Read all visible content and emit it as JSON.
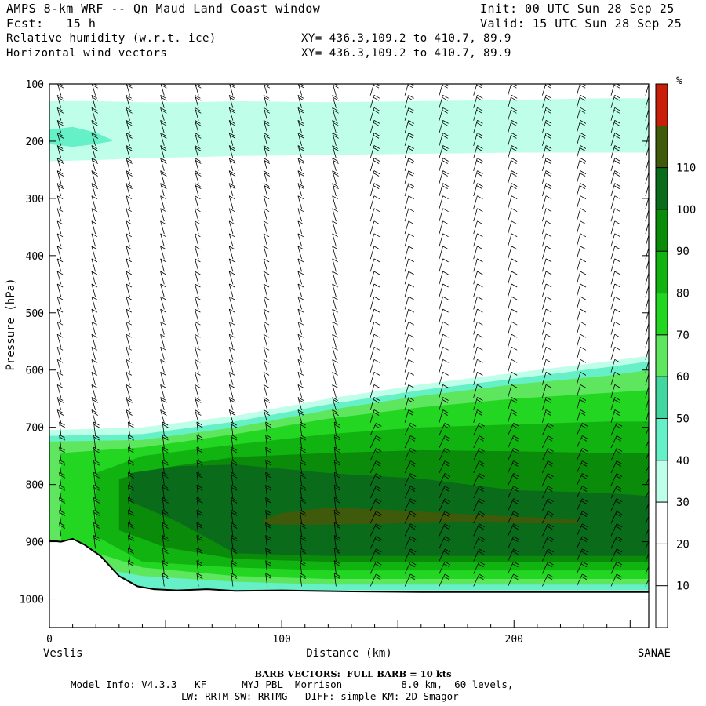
{
  "header": {
    "title": "AMPS 8-km WRF -- Qn Maud Land Coast window",
    "fcst": "Fcst:   15 h",
    "init": "Init: 00 UTC Sun 28 Sep 25",
    "valid": "Valid: 15 UTC Sun 28 Sep 25",
    "field1": "Relative humidity (w.r.t. ice)",
    "field2": "Horizontal wind vectors",
    "xy1": "XY= 436.3,109.2 to 410.7, 89.9",
    "xy2": "XY= 436.3,109.2 to 410.7, 89.9"
  },
  "footer": {
    "barb_title": "BARB VECTORS:  FULL BARB = 10 kts",
    "line1": "Model Info: V4.3.3   KF      MYJ PBL  Morrison          8.0 km,  60 levels,",
    "line2": "LW: RRTM SW: RRTMG   DIFF: simple KM: 2D Smagor"
  },
  "chart_data": {
    "type": "heatmap",
    "title": "Relative humidity (w.r.t. ice)",
    "xlabel": "Distance (km)",
    "ylabel": "Pressure (hPa)",
    "x_start_label": "Veslis",
    "x_end_label": "SANAE",
    "xlim": [
      0,
      258
    ],
    "ylim": [
      100,
      1050
    ],
    "x_ticks": [
      0,
      100,
      200
    ],
    "y_ticks": [
      100,
      200,
      300,
      400,
      500,
      600,
      700,
      800,
      900,
      1000
    ],
    "colorbar": {
      "unit": "%",
      "levels": [
        10,
        20,
        30,
        40,
        50,
        60,
        70,
        80,
        90,
        100,
        110
      ],
      "colors": [
        "#ffffff",
        "#ffffff",
        "#ffffff",
        "#bfffe9",
        "#66f0c8",
        "#42d6a0",
        "#5fe65f",
        "#22d622",
        "#11b311",
        "#0a8c0a",
        "#0a6b1a",
        "#3f5a0a",
        "#c81e0a"
      ]
    },
    "terrain": [
      {
        "x": 0,
        "p": 898
      },
      {
        "x": 5,
        "p": 900
      },
      {
        "x": 10,
        "p": 895
      },
      {
        "x": 15,
        "p": 905
      },
      {
        "x": 22,
        "p": 925
      },
      {
        "x": 30,
        "p": 960
      },
      {
        "x": 38,
        "p": 978
      },
      {
        "x": 45,
        "p": 983
      },
      {
        "x": 55,
        "p": 985
      },
      {
        "x": 68,
        "p": 983
      },
      {
        "x": 80,
        "p": 986
      },
      {
        "x": 100,
        "p": 985
      },
      {
        "x": 130,
        "p": 987
      },
      {
        "x": 160,
        "p": 988
      },
      {
        "x": 200,
        "p": 988
      },
      {
        "x": 258,
        "p": 988
      }
    ],
    "rh_layers": [
      {
        "rh": 35,
        "x": [
          0,
          20,
          40,
          60,
          80,
          120,
          160,
          200,
          240,
          258
        ],
        "bottom": [
          235,
          233,
          230,
          228,
          226,
          224,
          222,
          220,
          220,
          220
        ],
        "top": [
          130,
          130,
          132,
          132,
          130,
          132,
          130,
          128,
          125,
          125
        ]
      },
      {
        "rh": 45,
        "x": [
          0,
          10,
          20,
          27
        ],
        "bottom": [
          205,
          210,
          205,
          200
        ],
        "top": [
          180,
          175,
          185,
          198
        ]
      },
      {
        "rh": 35,
        "x": [
          0,
          40,
          80,
          120,
          160,
          200,
          240,
          258
        ],
        "bottom": [
          985,
          985,
          985,
          985,
          985,
          985,
          985,
          985
        ],
        "top": [
          705,
          700,
          680,
          650,
          625,
          605,
          585,
          575
        ]
      },
      {
        "rh": 45,
        "x": [
          0,
          40,
          80,
          120,
          160,
          200,
          240,
          258
        ],
        "bottom": [
          985,
          985,
          985,
          985,
          985,
          985,
          985,
          985
        ],
        "top": [
          715,
          712,
          690,
          660,
          635,
          615,
          595,
          585
        ]
      },
      {
        "rh": 65,
        "x": [
          0,
          40,
          80,
          120,
          160,
          200,
          240,
          258
        ],
        "bottom": [
          930,
          960,
          970,
          975,
          975,
          975,
          975,
          975
        ],
        "top": [
          725,
          722,
          700,
          670,
          645,
          625,
          610,
          600
        ]
      },
      {
        "rh": 75,
        "x": [
          5,
          40,
          80,
          120,
          160,
          200,
          240,
          258
        ],
        "bottom": [
          900,
          945,
          960,
          965,
          965,
          965,
          965,
          965
        ],
        "top": [
          745,
          735,
          712,
          685,
          665,
          650,
          640,
          635
        ]
      },
      {
        "rh": 85,
        "x": [
          20,
          40,
          80,
          120,
          160,
          200,
          240,
          258
        ],
        "bottom": [
          890,
          935,
          945,
          950,
          950,
          950,
          950,
          950
        ],
        "top": [
          780,
          750,
          730,
          712,
          700,
          695,
          690,
          690
        ]
      },
      {
        "rh": 95,
        "x": [
          30,
          50,
          80,
          120,
          160,
          200,
          240,
          258
        ],
        "bottom": [
          880,
          910,
          930,
          935,
          935,
          935,
          935,
          935
        ],
        "top": [
          790,
          770,
          752,
          745,
          740,
          742,
          745,
          745
        ]
      },
      {
        "rh": 105,
        "x": [
          35,
          55,
          80,
          120,
          160,
          200,
          240,
          258
        ],
        "bottom": [
          830,
          865,
          920,
          925,
          925,
          925,
          925,
          925
        ],
        "top": [
          780,
          768,
          765,
          780,
          790,
          810,
          815,
          820
        ]
      },
      {
        "rh": 115,
        "x": [
          92,
          100,
          120,
          150,
          180,
          210,
          228
        ],
        "bottom": [
          868,
          870,
          870,
          868,
          866,
          868,
          868
        ],
        "top": [
          862,
          850,
          840,
          845,
          852,
          858,
          862
        ]
      }
    ]
  }
}
